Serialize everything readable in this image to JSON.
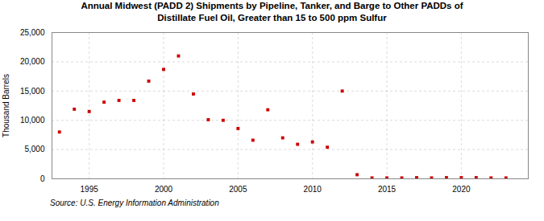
{
  "chart_data": {
    "type": "scatter",
    "title": "Annual Midwest (PADD 2) Shipments by Pipeline, Tanker, and Barge to Other PADDs of",
    "subtitle": "Distillate Fuel Oil, Greater than 15 to 500 ppm Sulfur",
    "y_label": "Thousand Barrels",
    "source": "Source:  U.S. Energy Information Administration",
    "x": [
      1993,
      1994,
      1995,
      1996,
      1997,
      1998,
      1999,
      2000,
      2001,
      2002,
      2003,
      2004,
      2005,
      2006,
      2007,
      2008,
      2009,
      2010,
      2011,
      2012,
      2013,
      2014,
      2015,
      2016,
      2017,
      2018,
      2019,
      2020,
      2021,
      2022,
      2023
    ],
    "values": [
      8000,
      11900,
      11500,
      13100,
      13400,
      13400,
      16700,
      18700,
      21000,
      14500,
      10100,
      10000,
      8600,
      6600,
      11800,
      7000,
      5900,
      6300,
      5400,
      15000,
      700,
      150,
      150,
      150,
      200,
      150,
      200,
      200,
      200,
      150,
      150
    ],
    "color": "#cc0000",
    "marker": "square",
    "xlim": [
      1992.5,
      2024.5
    ],
    "xticks": [
      1995,
      2000,
      2005,
      2010,
      2015,
      2020
    ],
    "ylim": [
      0,
      25000
    ],
    "yticks": [
      0,
      {
        "value": 5000,
        "label": "5,000"
      },
      {
        "value": 10000,
        "label": "10,000"
      },
      {
        "value": 15000,
        "label": "15,000"
      },
      {
        "value": 20000,
        "label": "20,000"
      },
      {
        "value": 25000,
        "label": "25,000"
      }
    ],
    "grid": true
  }
}
